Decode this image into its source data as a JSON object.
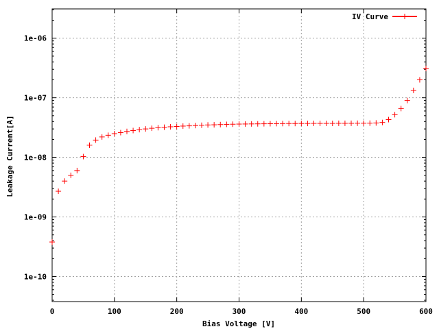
{
  "chart_data": {
    "type": "scatter",
    "xlabel": "Bias Voltage [V]",
    "ylabel": "Leakage Current[A]",
    "xlim": [
      0,
      600
    ],
    "ylim": [
      3.8e-11,
      3.1e-06
    ],
    "yscale": "log",
    "grid": true,
    "legend_position": "top-right",
    "x_ticks": [
      {
        "value": 0,
        "label": "0"
      },
      {
        "value": 100,
        "label": "100"
      },
      {
        "value": 200,
        "label": "200"
      },
      {
        "value": 300,
        "label": "300"
      },
      {
        "value": 400,
        "label": "400"
      },
      {
        "value": 500,
        "label": "500"
      },
      {
        "value": 600,
        "label": "600"
      }
    ],
    "y_ticks": [
      {
        "value": 1e-10,
        "label": "1e-10"
      },
      {
        "value": 1e-09,
        "label": "1e-09"
      },
      {
        "value": 1e-08,
        "label": "1e-08"
      },
      {
        "value": 1e-07,
        "label": "1e-07"
      },
      {
        "value": 1e-06,
        "label": "1e-06"
      }
    ],
    "series": [
      {
        "name": "IV Curve",
        "color": "#ff0000",
        "marker": "plus",
        "x": [
          0,
          10,
          20,
          30,
          40,
          50,
          60,
          70,
          80,
          90,
          100,
          110,
          120,
          130,
          140,
          150,
          160,
          170,
          180,
          190,
          200,
          210,
          220,
          230,
          240,
          250,
          260,
          270,
          280,
          290,
          300,
          310,
          320,
          330,
          340,
          350,
          360,
          370,
          380,
          390,
          400,
          410,
          420,
          430,
          440,
          450,
          460,
          470,
          480,
          490,
          500,
          510,
          520,
          530,
          540,
          550,
          560,
          570,
          580,
          590,
          600
        ],
        "y": [
          3.8e-10,
          2.7e-09,
          4e-09,
          5e-09,
          6e-09,
          1.03e-08,
          1.6e-08,
          1.95e-08,
          2.2e-08,
          2.35e-08,
          2.5e-08,
          2.6e-08,
          2.72e-08,
          2.82e-08,
          2.92e-08,
          3e-08,
          3.08e-08,
          3.15e-08,
          3.2e-08,
          3.26e-08,
          3.3e-08,
          3.35e-08,
          3.38e-08,
          3.42e-08,
          3.46e-08,
          3.5e-08,
          3.52e-08,
          3.55e-08,
          3.58e-08,
          3.6e-08,
          3.62e-08,
          3.63e-08,
          3.64e-08,
          3.65e-08,
          3.66e-08,
          3.67e-08,
          3.68e-08,
          3.69e-08,
          3.7e-08,
          3.7e-08,
          3.71e-08,
          3.71e-08,
          3.72e-08,
          3.72e-08,
          3.72e-08,
          3.72e-08,
          3.73e-08,
          3.73e-08,
          3.73e-08,
          3.74e-08,
          3.74e-08,
          3.75e-08,
          3.78e-08,
          3.85e-08,
          4.3e-08,
          5.2e-08,
          6.6e-08,
          9e-08,
          1.33e-07,
          2e-07,
          3.1e-07
        ]
      }
    ]
  }
}
